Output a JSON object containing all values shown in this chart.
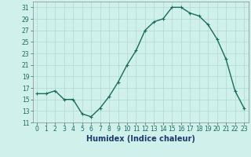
{
  "x": [
    0,
    1,
    2,
    3,
    4,
    5,
    6,
    7,
    8,
    9,
    10,
    11,
    12,
    13,
    14,
    15,
    16,
    17,
    18,
    19,
    20,
    21,
    22,
    23
  ],
  "y": [
    16,
    16,
    16.5,
    15,
    15,
    12.5,
    12,
    13.5,
    15.5,
    18,
    21,
    23.5,
    27,
    28.5,
    29,
    31,
    31,
    30,
    29.5,
    28,
    25.5,
    22,
    16.5,
    13.5
  ],
  "line_color": "#1a6b5a",
  "marker": "+",
  "marker_size": 3,
  "background_color": "#cff0eb",
  "grid_color": "#aed8d3",
  "xlabel": "Humidex (Indice chaleur)",
  "xlabel_fontsize": 7,
  "ylim": [
    11,
    32
  ],
  "yticks": [
    11,
    13,
    15,
    17,
    19,
    21,
    23,
    25,
    27,
    29,
    31
  ],
  "xlim": [
    -0.5,
    23.5
  ],
  "xticks": [
    0,
    1,
    2,
    3,
    4,
    5,
    6,
    7,
    8,
    9,
    10,
    11,
    12,
    13,
    14,
    15,
    16,
    17,
    18,
    19,
    20,
    21,
    22,
    23
  ],
  "tick_fontsize": 5.5,
  "line_width": 1.0,
  "xlabel_color": "#1a3a6a",
  "tick_color": "#1a6b5a"
}
